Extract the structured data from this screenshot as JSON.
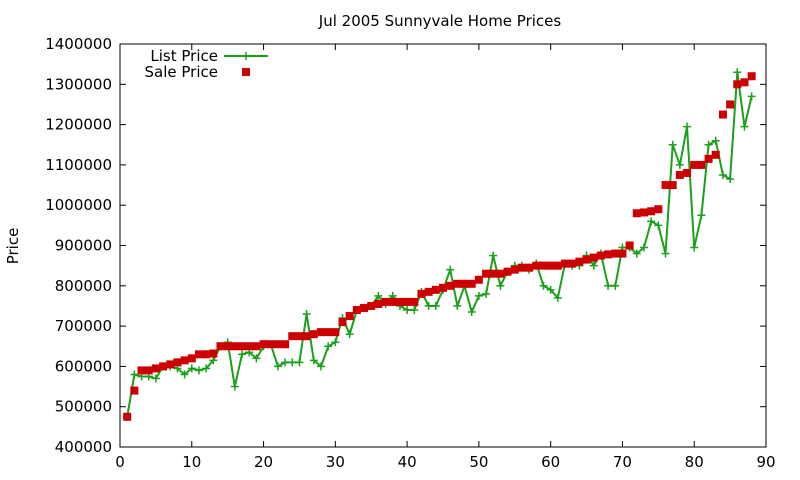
{
  "chart_data": {
    "type": "line",
    "title": "Jul 2005 Sunnyvale Home Prices",
    "xlabel": "",
    "ylabel": "Price",
    "xlim": [
      0,
      90
    ],
    "ylim": [
      400000,
      1400000
    ],
    "x_ticks": [
      0,
      10,
      20,
      30,
      40,
      50,
      60,
      70,
      80,
      90
    ],
    "y_ticks": [
      400000,
      500000,
      600000,
      700000,
      800000,
      900000,
      1000000,
      1100000,
      1200000,
      1300000,
      1400000
    ],
    "grid": false,
    "legend_position": "top-left",
    "series": [
      {
        "name": "List Price",
        "style": "linespoints",
        "marker": "plus",
        "color": "#1aa01a",
        "x": [
          1,
          2,
          3,
          4,
          5,
          6,
          7,
          8,
          9,
          10,
          11,
          12,
          13,
          14,
          15,
          16,
          17,
          18,
          19,
          20,
          21,
          22,
          23,
          24,
          25,
          26,
          27,
          28,
          29,
          30,
          31,
          32,
          33,
          34,
          35,
          36,
          37,
          38,
          39,
          40,
          41,
          42,
          43,
          44,
          45,
          46,
          47,
          48,
          49,
          50,
          51,
          52,
          53,
          54,
          55,
          56,
          57,
          58,
          59,
          60,
          61,
          62,
          63,
          64,
          65,
          66,
          67,
          68,
          69,
          70,
          71,
          72,
          73,
          74,
          75,
          76,
          77,
          78,
          79,
          80,
          81,
          82,
          83,
          84,
          85,
          86,
          87,
          88
        ],
        "values": [
          475000,
          580000,
          575000,
          575000,
          570000,
          600000,
          600000,
          595000,
          580000,
          595000,
          590000,
          595000,
          615000,
          650000,
          660000,
          550000,
          630000,
          635000,
          620000,
          650000,
          655000,
          600000,
          610000,
          610000,
          610000,
          730000,
          615000,
          600000,
          650000,
          660000,
          720000,
          680000,
          740000,
          745000,
          750000,
          775000,
          755000,
          775000,
          750000,
          740000,
          740000,
          785000,
          750000,
          750000,
          790000,
          840000,
          750000,
          800000,
          735000,
          775000,
          780000,
          875000,
          800000,
          835000,
          850000,
          850000,
          840000,
          855000,
          800000,
          790000,
          770000,
          855000,
          850000,
          850000,
          875000,
          850000,
          880000,
          800000,
          800000,
          895000,
          895000,
          880000,
          895000,
          960000,
          950000,
          880000,
          1150000,
          1100000,
          1195000,
          895000,
          975000,
          1150000,
          1160000,
          1075000,
          1065000,
          1330000,
          1195000,
          1270000
        ]
      },
      {
        "name": "Sale Price",
        "style": "points",
        "marker": "square",
        "color": "#cc0000",
        "x": [
          1,
          2,
          3,
          4,
          5,
          6,
          7,
          8,
          9,
          10,
          11,
          12,
          13,
          14,
          15,
          16,
          17,
          18,
          19,
          20,
          21,
          22,
          23,
          24,
          25,
          26,
          27,
          28,
          29,
          30,
          31,
          32,
          33,
          34,
          35,
          36,
          37,
          38,
          39,
          40,
          41,
          42,
          43,
          44,
          45,
          46,
          47,
          48,
          49,
          50,
          51,
          52,
          53,
          54,
          55,
          56,
          57,
          58,
          59,
          60,
          61,
          62,
          63,
          64,
          65,
          66,
          67,
          68,
          69,
          70,
          71,
          72,
          73,
          74,
          75,
          76,
          77,
          78,
          79,
          80,
          81,
          82,
          83,
          84,
          85,
          86,
          87,
          88
        ],
        "values": [
          475000,
          540000,
          590000,
          590000,
          595000,
          600000,
          605000,
          610000,
          615000,
          620000,
          630000,
          630000,
          632000,
          650000,
          650000,
          650000,
          650000,
          650000,
          650000,
          655000,
          655000,
          655000,
          655000,
          675000,
          675000,
          675000,
          680000,
          685000,
          685000,
          685000,
          710000,
          725000,
          740000,
          745000,
          750000,
          755000,
          760000,
          760000,
          760000,
          760000,
          760000,
          780000,
          785000,
          790000,
          795000,
          800000,
          805000,
          805000,
          805000,
          815000,
          830000,
          830000,
          830000,
          835000,
          840000,
          845000,
          845000,
          850000,
          850000,
          850000,
          850000,
          855000,
          855000,
          860000,
          865000,
          870000,
          875000,
          878000,
          880000,
          880000,
          900000,
          980000,
          982000,
          985000,
          990000,
          1050000,
          1050000,
          1075000,
          1080000,
          1100000,
          1100000,
          1115000,
          1125000,
          1225000,
          1250000,
          1300000,
          1305000,
          1320000
        ]
      }
    ]
  }
}
